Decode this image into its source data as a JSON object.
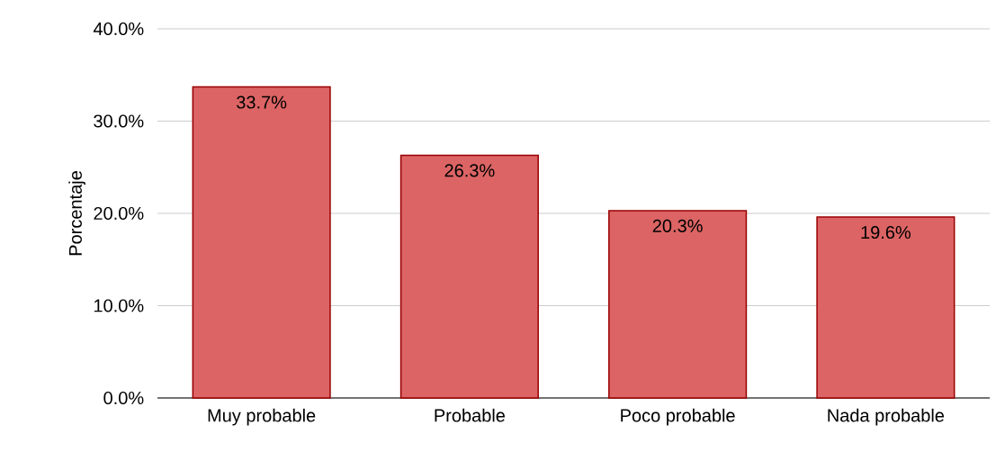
{
  "chart_data": {
    "type": "bar",
    "ylabel": "Porcentaje",
    "categories": [
      "Muy probable",
      "Probable",
      "Poco probable",
      "Nada probable"
    ],
    "values": [
      33.7,
      26.3,
      20.3,
      19.6
    ],
    "value_labels": [
      "33.7%",
      "26.3%",
      "20.3%",
      "19.6%"
    ],
    "color": "#dc6464",
    "ylim": [
      0,
      40
    ],
    "yticks": [
      {
        "value": 0,
        "label": "0.0%"
      },
      {
        "value": 10,
        "label": "10.0%"
      },
      {
        "value": 20,
        "label": "20.0%"
      },
      {
        "value": 30,
        "label": "30.0%"
      },
      {
        "value": 40,
        "label": "40.0%"
      }
    ],
    "grid": "y"
  }
}
